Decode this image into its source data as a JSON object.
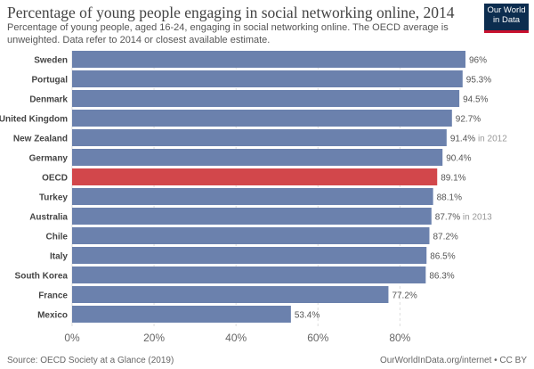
{
  "header": {
    "title": "Percentage of young people engaging in social networking online, 2014",
    "subtitle": "Percentage of young people, aged 16-24, engaging in social networking online. The OECD average is unweighted. Data refer to 2014 or closest available estimate."
  },
  "logo": {
    "line1": "Our World",
    "line2": "in Data"
  },
  "footer": {
    "source": "Source: OECD Society at a Glance (2019)",
    "credit": "OurWorldInData.org/internet • CC BY"
  },
  "colors": {
    "bar": "#6b81ad",
    "highlight": "#d2474b",
    "value_label": "#555555",
    "year_note": "#999999",
    "grid": "#dddddd"
  },
  "chart_data": {
    "type": "bar",
    "orientation": "horizontal",
    "categories": [
      "Sweden",
      "Portugal",
      "Denmark",
      "United Kingdom",
      "New Zealand",
      "Germany",
      "OECD",
      "Turkey",
      "Australia",
      "Chile",
      "Italy",
      "South Korea",
      "France",
      "Mexico"
    ],
    "values": [
      96,
      95.3,
      94.5,
      92.7,
      91.4,
      90.4,
      89.1,
      88.1,
      87.7,
      87.2,
      86.5,
      86.3,
      77.2,
      53.4
    ],
    "value_labels": [
      "96%",
      "95.3%",
      "94.5%",
      "92.7%",
      "91.4%",
      "90.4%",
      "89.1%",
      "88.1%",
      "87.7%",
      "87.2%",
      "86.5%",
      "86.3%",
      "77.2%",
      "53.4%"
    ],
    "year_notes": [
      "",
      "",
      "",
      "",
      "in 2012",
      "",
      "",
      "",
      "in 2013",
      "",
      "",
      "",
      "",
      ""
    ],
    "highlighted": [
      "OECD"
    ],
    "xlim": [
      0,
      96
    ],
    "x_ticks": [
      0,
      20,
      40,
      60,
      80
    ],
    "x_tick_labels": [
      "0%",
      "20%",
      "40%",
      "60%",
      "80%"
    ],
    "grid": true
  }
}
